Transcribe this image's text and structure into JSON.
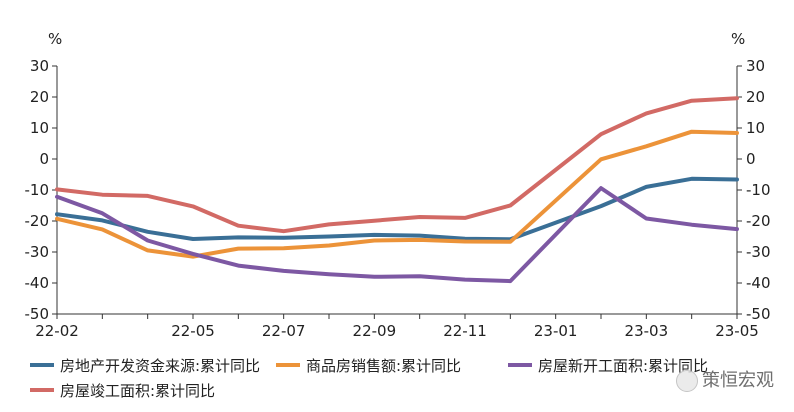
{
  "chart_data": {
    "type": "line",
    "unit_left": "%",
    "unit_right": "%",
    "ylim": [
      -50,
      30
    ],
    "y_ticks": [
      "30",
      "20",
      "10",
      "0",
      "-10",
      "-20",
      "-30",
      "-40",
      "-50"
    ],
    "x_tick_labels": [
      "22-02",
      "22-05",
      "22-07",
      "22-09",
      "22-11",
      "23-01",
      "23-03",
      "23-05"
    ],
    "x": [
      "22-02",
      "22-03",
      "22-04",
      "22-05",
      "22-06",
      "22-07",
      "22-08",
      "22-09",
      "22-10",
      "22-11",
      "22-12",
      "23-01",
      "23-02",
      "23-03",
      "23-04",
      "23-05"
    ],
    "grid": false,
    "legend_position": "bottom",
    "series": [
      {
        "name": "房地产开发资金来源:累计同比",
        "color": "#3a6f96",
        "values": [
          -17.8,
          -19.8,
          -23.5,
          -25.8,
          -25.3,
          -25.4,
          -25.0,
          -24.5,
          -24.7,
          -25.7,
          -25.9,
          null,
          -15.2,
          -9.0,
          -6.4,
          -6.6
        ]
      },
      {
        "name": "商品房销售额:累计同比",
        "color": "#ec9339",
        "values": [
          -19.3,
          -22.7,
          -29.5,
          -31.5,
          -28.9,
          -28.8,
          -27.9,
          -26.3,
          -26.1,
          -26.6,
          -26.7,
          null,
          -0.1,
          4.1,
          8.8,
          8.4
        ]
      },
      {
        "name": "房屋新开工面积:累计同比",
        "color": "#7d58a3",
        "values": [
          -12.2,
          -17.5,
          -26.3,
          -30.6,
          -34.4,
          -36.1,
          -37.2,
          -38.0,
          -37.8,
          -38.9,
          -39.4,
          null,
          -9.4,
          -19.2,
          -21.2,
          -22.6
        ]
      },
      {
        "name": "房屋竣工面积:累计同比",
        "color": "#d26a65",
        "values": [
          -9.8,
          -11.5,
          -11.9,
          -15.3,
          -21.5,
          -23.3,
          -21.1,
          -19.9,
          -18.7,
          -19.0,
          -15.0,
          null,
          8.0,
          14.7,
          18.8,
          19.6
        ]
      }
    ]
  },
  "watermark": {
    "text": "策恒宏观"
  }
}
